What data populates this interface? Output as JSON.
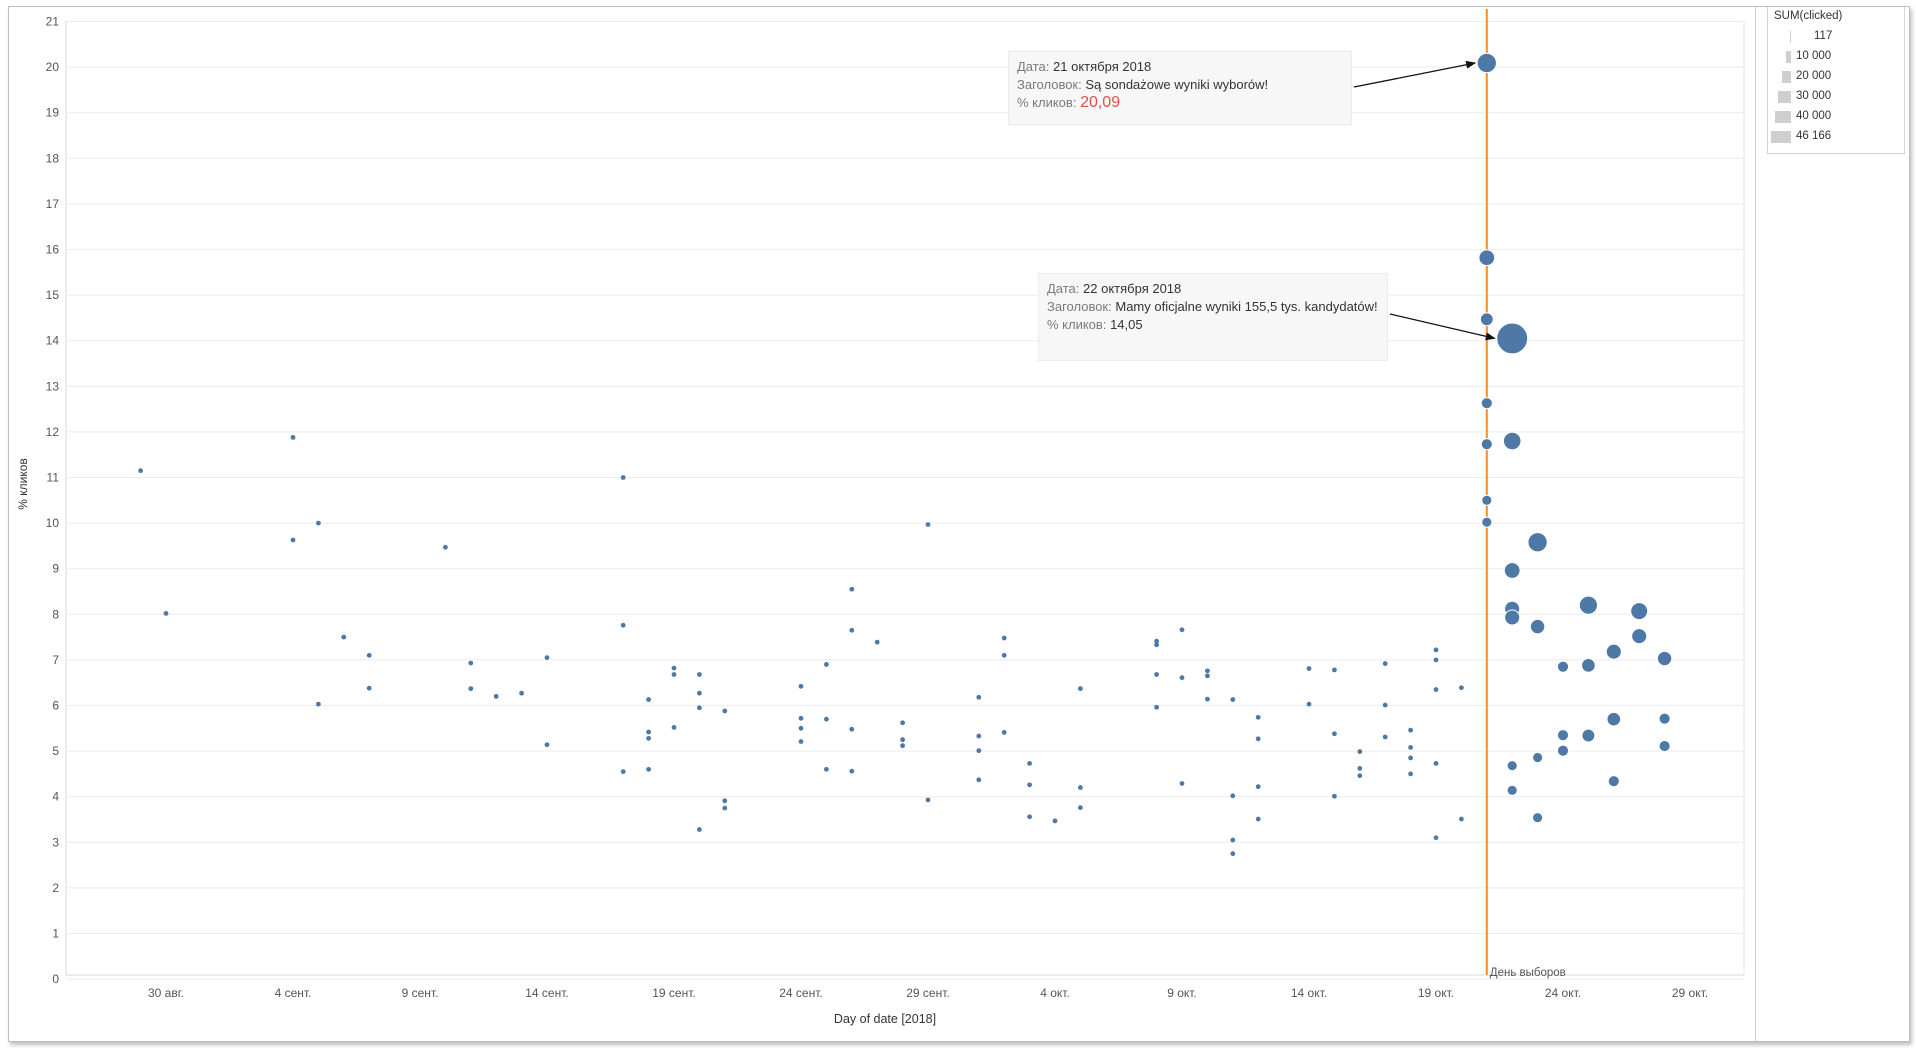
{
  "chart_data": {
    "type": "scatter",
    "xlabel": "Day of date [2018]",
    "ylabel": "% кликов",
    "y_ticks": [
      0,
      1,
      2,
      3,
      4,
      5,
      6,
      7,
      8,
      9,
      10,
      11,
      12,
      13,
      14,
      15,
      16,
      17,
      18,
      19,
      20,
      21
    ],
    "ylim": [
      0,
      21
    ],
    "xlim": [
      "2018-08-24",
      "2018-10-31"
    ],
    "x_ticks": [
      {
        "date": "2018-08-30",
        "label": "30 авг."
      },
      {
        "date": "2018-09-04",
        "label": "4 сент."
      },
      {
        "date": "2018-09-09",
        "label": "9 сент."
      },
      {
        "date": "2018-09-14",
        "label": "14 сент."
      },
      {
        "date": "2018-09-19",
        "label": "19 сент."
      },
      {
        "date": "2018-09-24",
        "label": "24 сент."
      },
      {
        "date": "2018-09-29",
        "label": "29 сент."
      },
      {
        "date": "2018-10-04",
        "label": "4 окт."
      },
      {
        "date": "2018-10-09",
        "label": "9 окт."
      },
      {
        "date": "2018-10-14",
        "label": "14 окт."
      },
      {
        "date": "2018-10-19",
        "label": "19 окт."
      },
      {
        "date": "2018-10-24",
        "label": "24 окт."
      },
      {
        "date": "2018-10-29",
        "label": "29 окт."
      }
    ],
    "grid": true,
    "legend_position": "top-right",
    "point_color": "#4e79a7",
    "size_legend": {
      "title": "SUM(clicked)",
      "entries": [
        {
          "value": 117,
          "label": "117"
        },
        {
          "value": 10000,
          "label": "10 000"
        },
        {
          "value": 20000,
          "label": "20 000"
        },
        {
          "value": 30000,
          "label": "30 000"
        },
        {
          "value": 40000,
          "label": "40 000"
        },
        {
          "value": 46166,
          "label": "46 166"
        }
      ]
    },
    "reference_line": {
      "date": "2018-10-21",
      "label": "День выборов",
      "color": "#f28e2b"
    },
    "points": [
      {
        "x": "2018-08-29",
        "y": 11.15,
        "s": 150
      },
      {
        "x": "2018-08-30",
        "y": 8.02,
        "s": 150
      },
      {
        "x": "2018-09-04",
        "y": 11.88,
        "s": 150
      },
      {
        "x": "2018-09-04",
        "y": 9.63,
        "s": 150
      },
      {
        "x": "2018-09-05",
        "y": 10.0,
        "s": 150
      },
      {
        "x": "2018-09-05",
        "y": 6.03,
        "s": 150
      },
      {
        "x": "2018-09-06",
        "y": 7.5,
        "s": 150
      },
      {
        "x": "2018-09-07",
        "y": 7.1,
        "s": 150
      },
      {
        "x": "2018-09-07",
        "y": 6.38,
        "s": 150
      },
      {
        "x": "2018-09-10",
        "y": 9.47,
        "s": 150
      },
      {
        "x": "2018-09-11",
        "y": 6.93,
        "s": 150
      },
      {
        "x": "2018-09-11",
        "y": 6.37,
        "s": 150
      },
      {
        "x": "2018-09-12",
        "y": 6.2,
        "s": 150
      },
      {
        "x": "2018-09-13",
        "y": 6.27,
        "s": 150
      },
      {
        "x": "2018-09-14",
        "y": 7.05,
        "s": 150
      },
      {
        "x": "2018-09-14",
        "y": 5.14,
        "s": 150
      },
      {
        "x": "2018-09-17",
        "y": 11.0,
        "s": 150
      },
      {
        "x": "2018-09-17",
        "y": 7.76,
        "s": 150
      },
      {
        "x": "2018-09-17",
        "y": 4.55,
        "s": 150
      },
      {
        "x": "2018-09-18",
        "y": 6.13,
        "s": 150
      },
      {
        "x": "2018-09-18",
        "y": 5.42,
        "s": 150
      },
      {
        "x": "2018-09-18",
        "y": 5.28,
        "s": 150
      },
      {
        "x": "2018-09-18",
        "y": 4.6,
        "s": 150
      },
      {
        "x": "2018-09-19",
        "y": 6.82,
        "s": 150
      },
      {
        "x": "2018-09-19",
        "y": 6.68,
        "s": 150
      },
      {
        "x": "2018-09-19",
        "y": 5.52,
        "s": 150
      },
      {
        "x": "2018-09-20",
        "y": 6.68,
        "s": 150
      },
      {
        "x": "2018-09-20",
        "y": 6.27,
        "s": 150
      },
      {
        "x": "2018-09-20",
        "y": 5.95,
        "s": 150
      },
      {
        "x": "2018-09-20",
        "y": 3.28,
        "s": 150
      },
      {
        "x": "2018-09-21",
        "y": 5.88,
        "s": 150
      },
      {
        "x": "2018-09-21",
        "y": 3.91,
        "s": 150
      },
      {
        "x": "2018-09-21",
        "y": 3.75,
        "s": 150
      },
      {
        "x": "2018-09-24",
        "y": 6.42,
        "s": 150
      },
      {
        "x": "2018-09-24",
        "y": 5.72,
        "s": 150
      },
      {
        "x": "2018-09-24",
        "y": 5.5,
        "s": 150
      },
      {
        "x": "2018-09-24",
        "y": 5.21,
        "s": 150
      },
      {
        "x": "2018-09-25",
        "y": 6.9,
        "s": 150
      },
      {
        "x": "2018-09-25",
        "y": 5.7,
        "s": 150
      },
      {
        "x": "2018-09-25",
        "y": 4.6,
        "s": 150
      },
      {
        "x": "2018-09-26",
        "y": 8.55,
        "s": 150
      },
      {
        "x": "2018-09-26",
        "y": 7.65,
        "s": 150
      },
      {
        "x": "2018-09-26",
        "y": 5.48,
        "s": 150
      },
      {
        "x": "2018-09-26",
        "y": 4.56,
        "s": 150
      },
      {
        "x": "2018-09-27",
        "y": 7.39,
        "s": 150
      },
      {
        "x": "2018-09-28",
        "y": 5.62,
        "s": 150
      },
      {
        "x": "2018-09-28",
        "y": 5.25,
        "s": 150
      },
      {
        "x": "2018-09-28",
        "y": 5.12,
        "s": 150
      },
      {
        "x": "2018-09-29",
        "y": 9.97,
        "s": 150
      },
      {
        "x": "2018-09-29",
        "y": 3.93,
        "s": 150
      },
      {
        "x": "2018-10-01",
        "y": 6.18,
        "s": 150
      },
      {
        "x": "2018-10-01",
        "y": 5.33,
        "s": 150
      },
      {
        "x": "2018-10-01",
        "y": 5.01,
        "s": 150
      },
      {
        "x": "2018-10-01",
        "y": 4.37,
        "s": 150
      },
      {
        "x": "2018-10-02",
        "y": 7.48,
        "s": 150
      },
      {
        "x": "2018-10-02",
        "y": 7.1,
        "s": 150
      },
      {
        "x": "2018-10-02",
        "y": 5.41,
        "s": 150
      },
      {
        "x": "2018-10-03",
        "y": 4.73,
        "s": 150
      },
      {
        "x": "2018-10-03",
        "y": 4.26,
        "s": 150
      },
      {
        "x": "2018-10-03",
        "y": 3.56,
        "s": 150
      },
      {
        "x": "2018-10-04",
        "y": 3.47,
        "s": 150
      },
      {
        "x": "2018-10-05",
        "y": 6.37,
        "s": 150
      },
      {
        "x": "2018-10-05",
        "y": 4.2,
        "s": 150
      },
      {
        "x": "2018-10-05",
        "y": 3.76,
        "s": 150
      },
      {
        "x": "2018-10-08",
        "y": 7.41,
        "s": 150
      },
      {
        "x": "2018-10-08",
        "y": 7.33,
        "s": 150
      },
      {
        "x": "2018-10-08",
        "y": 6.68,
        "s": 150
      },
      {
        "x": "2018-10-08",
        "y": 5.96,
        "s": 150
      },
      {
        "x": "2018-10-09",
        "y": 7.66,
        "s": 150
      },
      {
        "x": "2018-10-09",
        "y": 6.61,
        "s": 150
      },
      {
        "x": "2018-10-09",
        "y": 4.29,
        "s": 150
      },
      {
        "x": "2018-10-10",
        "y": 6.76,
        "s": 150
      },
      {
        "x": "2018-10-10",
        "y": 6.65,
        "s": 150
      },
      {
        "x": "2018-10-10",
        "y": 6.14,
        "s": 150
      },
      {
        "x": "2018-10-11",
        "y": 6.13,
        "s": 150
      },
      {
        "x": "2018-10-11",
        "y": 4.02,
        "s": 150
      },
      {
        "x": "2018-10-11",
        "y": 3.05,
        "s": 150
      },
      {
        "x": "2018-10-11",
        "y": 2.75,
        "s": 150
      },
      {
        "x": "2018-10-12",
        "y": 5.74,
        "s": 150
      },
      {
        "x": "2018-10-12",
        "y": 5.27,
        "s": 150
      },
      {
        "x": "2018-10-12",
        "y": 4.22,
        "s": 150
      },
      {
        "x": "2018-10-12",
        "y": 3.51,
        "s": 150
      },
      {
        "x": "2018-10-14",
        "y": 6.81,
        "s": 500
      },
      {
        "x": "2018-10-14",
        "y": 6.03,
        "s": 500
      },
      {
        "x": "2018-10-15",
        "y": 6.78,
        "s": 500
      },
      {
        "x": "2018-10-15",
        "y": 5.38,
        "s": 500
      },
      {
        "x": "2018-10-15",
        "y": 4.01,
        "s": 500
      },
      {
        "x": "2018-10-16",
        "y": 4.99,
        "s": 500
      },
      {
        "x": "2018-10-16",
        "y": 4.62,
        "s": 500
      },
      {
        "x": "2018-10-16",
        "y": 4.46,
        "s": 500
      },
      {
        "x": "2018-10-17",
        "y": 6.92,
        "s": 500
      },
      {
        "x": "2018-10-17",
        "y": 6.01,
        "s": 500
      },
      {
        "x": "2018-10-17",
        "y": 5.31,
        "s": 500
      },
      {
        "x": "2018-10-18",
        "y": 5.46,
        "s": 500
      },
      {
        "x": "2018-10-18",
        "y": 5.08,
        "s": 500
      },
      {
        "x": "2018-10-18",
        "y": 4.85,
        "s": 500
      },
      {
        "x": "2018-10-18",
        "y": 4.5,
        "s": 500
      },
      {
        "x": "2018-10-19",
        "y": 7.22,
        "s": 1000
      },
      {
        "x": "2018-10-19",
        "y": 7.0,
        "s": 1000
      },
      {
        "x": "2018-10-19",
        "y": 6.35,
        "s": 500
      },
      {
        "x": "2018-10-19",
        "y": 4.73,
        "s": 500
      },
      {
        "x": "2018-10-19",
        "y": 3.1,
        "s": 500
      },
      {
        "x": "2018-10-20",
        "y": 6.39,
        "s": 1000
      },
      {
        "x": "2018-10-20",
        "y": 3.51,
        "s": 500
      },
      {
        "x": "2018-10-21",
        "y": 20.09,
        "s": 18000
      },
      {
        "x": "2018-10-21",
        "y": 15.82,
        "s": 12000
      },
      {
        "x": "2018-10-21",
        "y": 14.47,
        "s": 8000
      },
      {
        "x": "2018-10-21",
        "y": 12.63,
        "s": 6000
      },
      {
        "x": "2018-10-21",
        "y": 11.73,
        "s": 6000
      },
      {
        "x": "2018-10-21",
        "y": 10.5,
        "s": 5000
      },
      {
        "x": "2018-10-21",
        "y": 10.02,
        "s": 5000
      },
      {
        "x": "2018-10-22",
        "y": 14.05,
        "s": 46166
      },
      {
        "x": "2018-10-22",
        "y": 11.8,
        "s": 15000
      },
      {
        "x": "2018-10-22",
        "y": 8.96,
        "s": 12000
      },
      {
        "x": "2018-10-22",
        "y": 8.12,
        "s": 11000
      },
      {
        "x": "2018-10-22",
        "y": 7.93,
        "s": 11000
      },
      {
        "x": "2018-10-22",
        "y": 4.68,
        "s": 5000
      },
      {
        "x": "2018-10-22",
        "y": 4.14,
        "s": 5000
      },
      {
        "x": "2018-10-23",
        "y": 9.58,
        "s": 18000
      },
      {
        "x": "2018-10-23",
        "y": 7.73,
        "s": 10000
      },
      {
        "x": "2018-10-23",
        "y": 4.86,
        "s": 5000
      },
      {
        "x": "2018-10-23",
        "y": 3.54,
        "s": 5000
      },
      {
        "x": "2018-10-24",
        "y": 6.85,
        "s": 6000
      },
      {
        "x": "2018-10-24",
        "y": 5.35,
        "s": 6000
      },
      {
        "x": "2018-10-24",
        "y": 5.01,
        "s": 6000
      },
      {
        "x": "2018-10-25",
        "y": 8.2,
        "s": 16000
      },
      {
        "x": "2018-10-25",
        "y": 6.88,
        "s": 9000
      },
      {
        "x": "2018-10-25",
        "y": 5.34,
        "s": 8000
      },
      {
        "x": "2018-10-26",
        "y": 7.18,
        "s": 11000
      },
      {
        "x": "2018-10-26",
        "y": 5.7,
        "s": 9000
      },
      {
        "x": "2018-10-26",
        "y": 4.34,
        "s": 6000
      },
      {
        "x": "2018-10-27",
        "y": 8.07,
        "s": 14000
      },
      {
        "x": "2018-10-27",
        "y": 7.52,
        "s": 11000
      },
      {
        "x": "2018-10-28",
        "y": 7.03,
        "s": 10000
      },
      {
        "x": "2018-10-28",
        "y": 5.71,
        "s": 6000
      },
      {
        "x": "2018-10-28",
        "y": 5.11,
        "s": 6000
      }
    ]
  },
  "annotations": [
    {
      "date_key": "Дата:",
      "date_value": "21 октября 2018",
      "title_key": "Заголовок:",
      "title_value": "Są sondażowe wyniki wyborów!",
      "pct_key": "% кликов:",
      "pct_value": "20,09",
      "target": {
        "x": "2018-10-21",
        "y": 20.09
      }
    },
    {
      "date_key": "Дата:",
      "date_value": "22 октября 2018",
      "title_key": "Заголовок:",
      "title_value": "Mamy oficjalne wyniki 155,5 tys. kandydatów!",
      "pct_key": "% кликов:",
      "pct_value": "14,05",
      "target": {
        "x": "2018-10-22",
        "y": 14.05
      }
    }
  ]
}
